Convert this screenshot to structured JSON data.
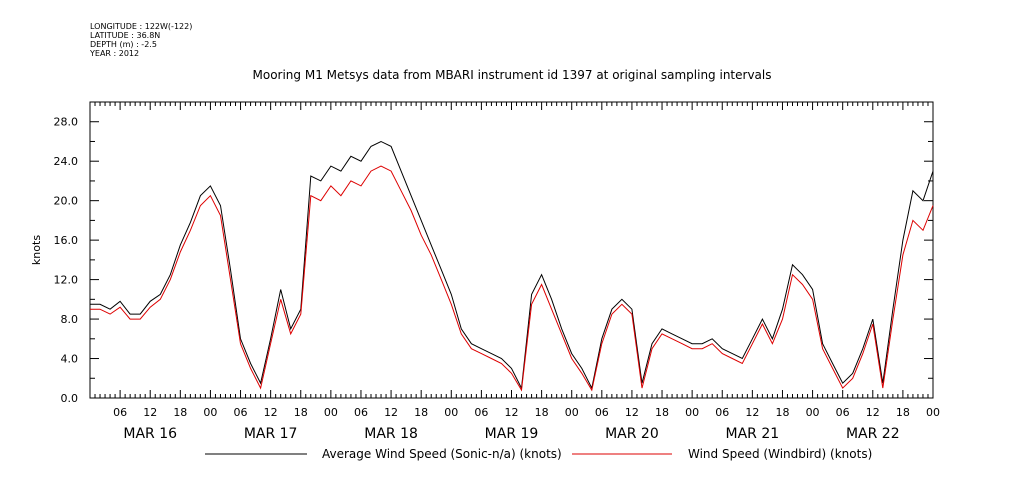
{
  "meta": {
    "longitude": "LONGITUDE : 122W(-122)",
    "latitude": "LATITUDE : 36.8N",
    "depth": "DEPTH (m) : -2.5",
    "year": "YEAR : 2012"
  },
  "chart_data": {
    "type": "line",
    "title": "Mooring M1 Metsys data from MBARI instrument id 1397 at original sampling intervals",
    "ylabel": "knots",
    "xlabel": "",
    "ylim": [
      0,
      30
    ],
    "yticks": [
      "0.0",
      "4.0",
      "8.0",
      "12.0",
      "16.0",
      "20.0",
      "24.0",
      "28.0"
    ],
    "yvals": [
      0,
      4,
      8,
      12,
      16,
      20,
      24,
      28
    ],
    "xlim_hours": [
      0,
      168
    ],
    "hour_labels": [
      "06",
      "12",
      "18",
      "00",
      "06",
      "12",
      "18",
      "00",
      "06",
      "12",
      "18",
      "00",
      "06",
      "12",
      "18",
      "00",
      "06",
      "12",
      "18",
      "00",
      "06",
      "12",
      "18",
      "00",
      "06",
      "12",
      "18",
      "00"
    ],
    "day_labels": [
      "MAR 16",
      "MAR 17",
      "MAR 18",
      "MAR 19",
      "MAR 20",
      "MAR 21",
      "MAR 22"
    ],
    "grid": false,
    "legend_position": "bottom",
    "colors": {
      "sonic": "#000000",
      "windbird": "#dd0000"
    },
    "series": [
      {
        "name": "Average Wind Speed (Sonic-n/a) (knots)",
        "color": "#000000",
        "x": [
          0,
          2,
          4,
          6,
          8,
          10,
          12,
          14,
          16,
          18,
          20,
          22,
          24,
          26,
          28,
          30,
          32,
          34,
          36,
          38,
          40,
          42,
          44,
          46,
          48,
          50,
          52,
          54,
          56,
          58,
          60,
          62,
          64,
          66,
          68,
          70,
          72,
          74,
          76,
          78,
          80,
          82,
          84,
          86,
          88,
          90,
          92,
          94,
          96,
          98,
          100,
          102,
          104,
          106,
          108,
          110,
          112,
          114,
          116,
          118,
          120,
          122,
          124,
          126,
          128,
          130,
          132,
          134,
          136,
          138,
          140,
          142,
          144,
          146,
          148,
          150,
          152,
          154,
          156,
          158,
          160,
          162,
          164,
          166,
          168
        ],
        "values": [
          9.5,
          9.5,
          9.0,
          9.8,
          8.5,
          8.5,
          9.8,
          10.5,
          12.5,
          15.5,
          17.8,
          20.5,
          21.5,
          19.5,
          13.0,
          6.0,
          3.5,
          1.5,
          6.0,
          11.0,
          7.0,
          9.0,
          22.5,
          22.0,
          23.5,
          23.0,
          24.5,
          24.0,
          25.5,
          26.0,
          25.5,
          23.0,
          20.5,
          18.0,
          15.5,
          13.0,
          10.5,
          7.0,
          5.5,
          5.0,
          4.5,
          4.0,
          3.0,
          1.0,
          10.5,
          12.5,
          10.0,
          7.0,
          4.5,
          3.0,
          1.0,
          6.0,
          9.0,
          10.0,
          9.0,
          1.5,
          5.5,
          7.0,
          6.5,
          6.0,
          5.5,
          5.5,
          6.0,
          5.0,
          4.5,
          4.0,
          6.0,
          8.0,
          6.0,
          9.0,
          13.5,
          12.5,
          11.0,
          5.5,
          3.5,
          1.5,
          2.5,
          5.0,
          8.0,
          1.5,
          9.0,
          16.0,
          21.0,
          20.0,
          23.0
        ]
      },
      {
        "name": "Wind Speed (Windbird) (knots)",
        "color": "#dd0000",
        "x": [
          0,
          2,
          4,
          6,
          8,
          10,
          12,
          14,
          16,
          18,
          20,
          22,
          24,
          26,
          28,
          30,
          32,
          34,
          36,
          38,
          40,
          42,
          44,
          46,
          48,
          50,
          52,
          54,
          56,
          58,
          60,
          62,
          64,
          66,
          68,
          70,
          72,
          74,
          76,
          78,
          80,
          82,
          84,
          86,
          88,
          90,
          92,
          94,
          96,
          98,
          100,
          102,
          104,
          106,
          108,
          110,
          112,
          114,
          116,
          118,
          120,
          122,
          124,
          126,
          128,
          130,
          132,
          134,
          136,
          138,
          140,
          142,
          144,
          146,
          148,
          150,
          152,
          154,
          156,
          158,
          160,
          162,
          164,
          166,
          168
        ],
        "values": [
          9.0,
          9.0,
          8.5,
          9.2,
          8.0,
          8.0,
          9.2,
          10.0,
          12.0,
          14.8,
          17.0,
          19.5,
          20.5,
          18.5,
          12.0,
          5.5,
          3.0,
          1.0,
          5.5,
          10.0,
          6.5,
          8.5,
          20.5,
          20.0,
          21.5,
          20.5,
          22.0,
          21.5,
          23.0,
          23.5,
          23.0,
          21.0,
          19.0,
          16.5,
          14.5,
          12.0,
          9.5,
          6.5,
          5.0,
          4.5,
          4.0,
          3.5,
          2.5,
          0.8,
          9.5,
          11.5,
          9.0,
          6.5,
          4.0,
          2.5,
          0.8,
          5.5,
          8.5,
          9.5,
          8.5,
          1.0,
          5.0,
          6.5,
          6.0,
          5.5,
          5.0,
          5.0,
          5.5,
          4.5,
          4.0,
          3.5,
          5.5,
          7.5,
          5.5,
          8.0,
          12.5,
          11.5,
          10.0,
          5.0,
          3.0,
          1.0,
          2.0,
          4.5,
          7.5,
          1.0,
          8.0,
          14.5,
          18.0,
          17.0,
          19.5
        ]
      }
    ]
  }
}
